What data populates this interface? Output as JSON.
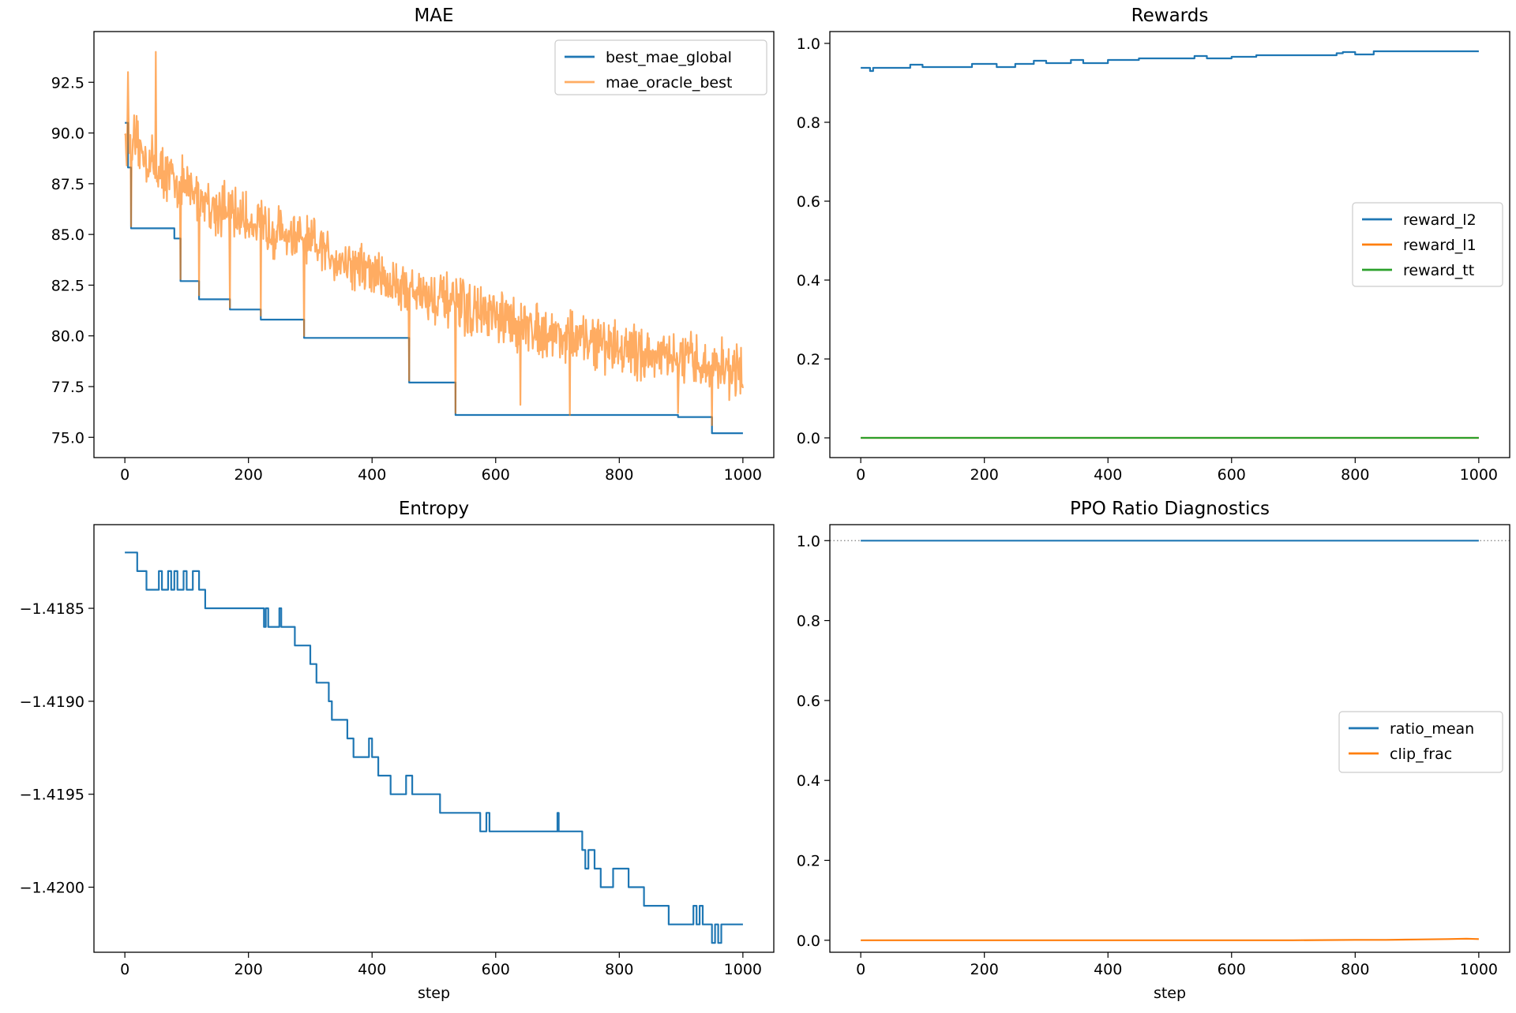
{
  "chart_data": [
    {
      "type": "line",
      "title": "MAE",
      "xlabel": "",
      "ylabel": "",
      "xlim": [
        -50,
        1050
      ],
      "ylim": [
        74.0,
        95.0
      ],
      "xticks": [
        0,
        200,
        400,
        600,
        800,
        1000
      ],
      "yticks": [
        75.0,
        77.5,
        80.0,
        82.5,
        85.0,
        87.5,
        90.0,
        92.5
      ],
      "ytick_labels": [
        "75.0",
        "77.5",
        "80.0",
        "82.5",
        "85.0",
        "87.5",
        "90.0",
        "92.5"
      ],
      "legend_position": "upper right",
      "series": [
        {
          "name": "best_mae_global",
          "color": "#1f77b4",
          "step": true,
          "x": [
            0,
            5,
            10,
            80,
            90,
            120,
            170,
            220,
            290,
            460,
            535,
            895,
            950,
            1000
          ],
          "y": [
            90.5,
            88.3,
            85.3,
            84.8,
            82.7,
            81.8,
            81.3,
            80.8,
            79.9,
            77.7,
            76.1,
            76.0,
            75.2,
            75.2
          ]
        },
        {
          "name": "mae_oracle_best",
          "color": "#ff7f0e",
          "alpha": 0.65,
          "noisy": true,
          "trend_x": [
            0,
            50,
            150,
            300,
            450,
            600,
            800,
            1000
          ],
          "trend_y": [
            90.0,
            88.3,
            86.3,
            84.5,
            82.4,
            80.8,
            79.4,
            78.2
          ],
          "amplitude": 1.6,
          "spikes_x": [
            2,
            5,
            10,
            50,
            90,
            120,
            170,
            220,
            290,
            460,
            535,
            640,
            720,
            895,
            950
          ],
          "spikes_y": [
            89.0,
            93.0,
            85.4,
            94.0,
            82.8,
            82.0,
            81.4,
            81.0,
            80.0,
            77.8,
            76.2,
            76.6,
            76.1,
            76.2,
            75.6
          ]
        }
      ]
    },
    {
      "type": "line",
      "title": "Rewards",
      "xlabel": "",
      "ylabel": "",
      "xlim": [
        -50,
        1050
      ],
      "ylim": [
        -0.05,
        1.03
      ],
      "xticks": [
        0,
        200,
        400,
        600,
        800,
        1000
      ],
      "yticks": [
        0.0,
        0.2,
        0.4,
        0.6,
        0.8,
        1.0
      ],
      "ytick_labels": [
        "0.0",
        "0.2",
        "0.4",
        "0.6",
        "0.8",
        "1.0"
      ],
      "legend_position": "center right",
      "series": [
        {
          "name": "reward_l2",
          "color": "#1f77b4",
          "step": true,
          "x": [
            0,
            15,
            20,
            80,
            100,
            180,
            220,
            250,
            280,
            300,
            340,
            360,
            400,
            450,
            540,
            560,
            600,
            640,
            700,
            770,
            780,
            800,
            830,
            1000
          ],
          "y": [
            0.938,
            0.93,
            0.938,
            0.946,
            0.94,
            0.948,
            0.94,
            0.948,
            0.956,
            0.95,
            0.958,
            0.95,
            0.958,
            0.962,
            0.968,
            0.962,
            0.966,
            0.97,
            0.97,
            0.975,
            0.978,
            0.972,
            0.98,
            0.98
          ]
        },
        {
          "name": "reward_l1",
          "color": "#ff7f0e",
          "x": [
            0,
            1000
          ],
          "y": [
            0.0,
            0.0
          ]
        },
        {
          "name": "reward_tt",
          "color": "#2ca02c",
          "x": [
            0,
            1000
          ],
          "y": [
            0.0,
            0.0
          ]
        }
      ]
    },
    {
      "type": "line",
      "title": "Entropy",
      "xlabel": "step",
      "ylabel": "",
      "xlim": [
        -50,
        1050
      ],
      "ylim": [
        -1.42035,
        -1.41805
      ],
      "xticks": [
        0,
        200,
        400,
        600,
        800,
        1000
      ],
      "yticks": [
        -1.4185,
        -1.419,
        -1.4195,
        -1.42
      ],
      "ytick_labels": [
        "−1.4185",
        "−1.4190",
        "−1.4195",
        "−1.4200"
      ],
      "legend_position": "",
      "series": [
        {
          "name": "",
          "color": "#1f77b4",
          "step": true,
          "x": [
            0,
            20,
            35,
            55,
            60,
            70,
            75,
            80,
            85,
            95,
            100,
            110,
            120,
            130,
            225,
            228,
            232,
            235,
            250,
            253,
            260,
            275,
            300,
            303,
            310,
            330,
            335,
            360,
            370,
            395,
            400,
            410,
            430,
            455,
            465,
            475,
            510,
            575,
            585,
            590,
            600,
            700,
            702,
            740,
            745,
            750,
            760,
            770,
            790,
            815,
            820,
            840,
            880,
            920,
            925,
            930,
            935,
            950,
            955,
            960,
            965,
            980,
            985,
            1000
          ],
          "y": [
            -1.4182,
            -1.4183,
            -1.4184,
            -1.4183,
            -1.4184,
            -1.4183,
            -1.4184,
            -1.4183,
            -1.4184,
            -1.4183,
            -1.4184,
            -1.4183,
            -1.4184,
            -1.4185,
            -1.4186,
            -1.4185,
            -1.4186,
            -1.4186,
            -1.4185,
            -1.4186,
            -1.4186,
            -1.4187,
            -1.4188,
            -1.4188,
            -1.4189,
            -1.419,
            -1.4191,
            -1.4192,
            -1.4193,
            -1.4192,
            -1.4193,
            -1.4194,
            -1.4195,
            -1.4194,
            -1.4195,
            -1.4195,
            -1.4196,
            -1.4197,
            -1.4196,
            -1.4197,
            -1.4197,
            -1.4196,
            -1.4197,
            -1.4198,
            -1.4199,
            -1.4198,
            -1.4199,
            -1.42,
            -1.4199,
            -1.42,
            -1.42,
            -1.4201,
            -1.4202,
            -1.4201,
            -1.4202,
            -1.4201,
            -1.4202,
            -1.4203,
            -1.4202,
            -1.4203,
            -1.4202,
            -1.4202,
            -1.4202,
            -1.4202
          ]
        }
      ]
    },
    {
      "type": "line",
      "title": "PPO Ratio Diagnostics",
      "xlabel": "step",
      "ylabel": "",
      "xlim": [
        -50,
        1050
      ],
      "ylim": [
        -0.03,
        1.04
      ],
      "xticks": [
        0,
        200,
        400,
        600,
        800,
        1000
      ],
      "yticks": [
        0.0,
        0.2,
        0.4,
        0.6,
        0.8,
        1.0
      ],
      "ytick_labels": [
        "0.0",
        "0.2",
        "0.4",
        "0.6",
        "0.8",
        "1.0"
      ],
      "hline": {
        "y": 1.0,
        "style": "dotted",
        "color": "#808080"
      },
      "legend_position": "center right",
      "series": [
        {
          "name": "ratio_mean",
          "color": "#1f77b4",
          "x": [
            0,
            1000
          ],
          "y": [
            1.0,
            1.0
          ]
        },
        {
          "name": "clip_frac",
          "color": "#ff7f0e",
          "x": [
            0,
            700,
            800,
            850,
            900,
            950,
            980,
            1000
          ],
          "y": [
            0.0,
            0.0,
            0.001,
            0.001,
            0.002,
            0.003,
            0.004,
            0.003
          ]
        }
      ]
    }
  ]
}
